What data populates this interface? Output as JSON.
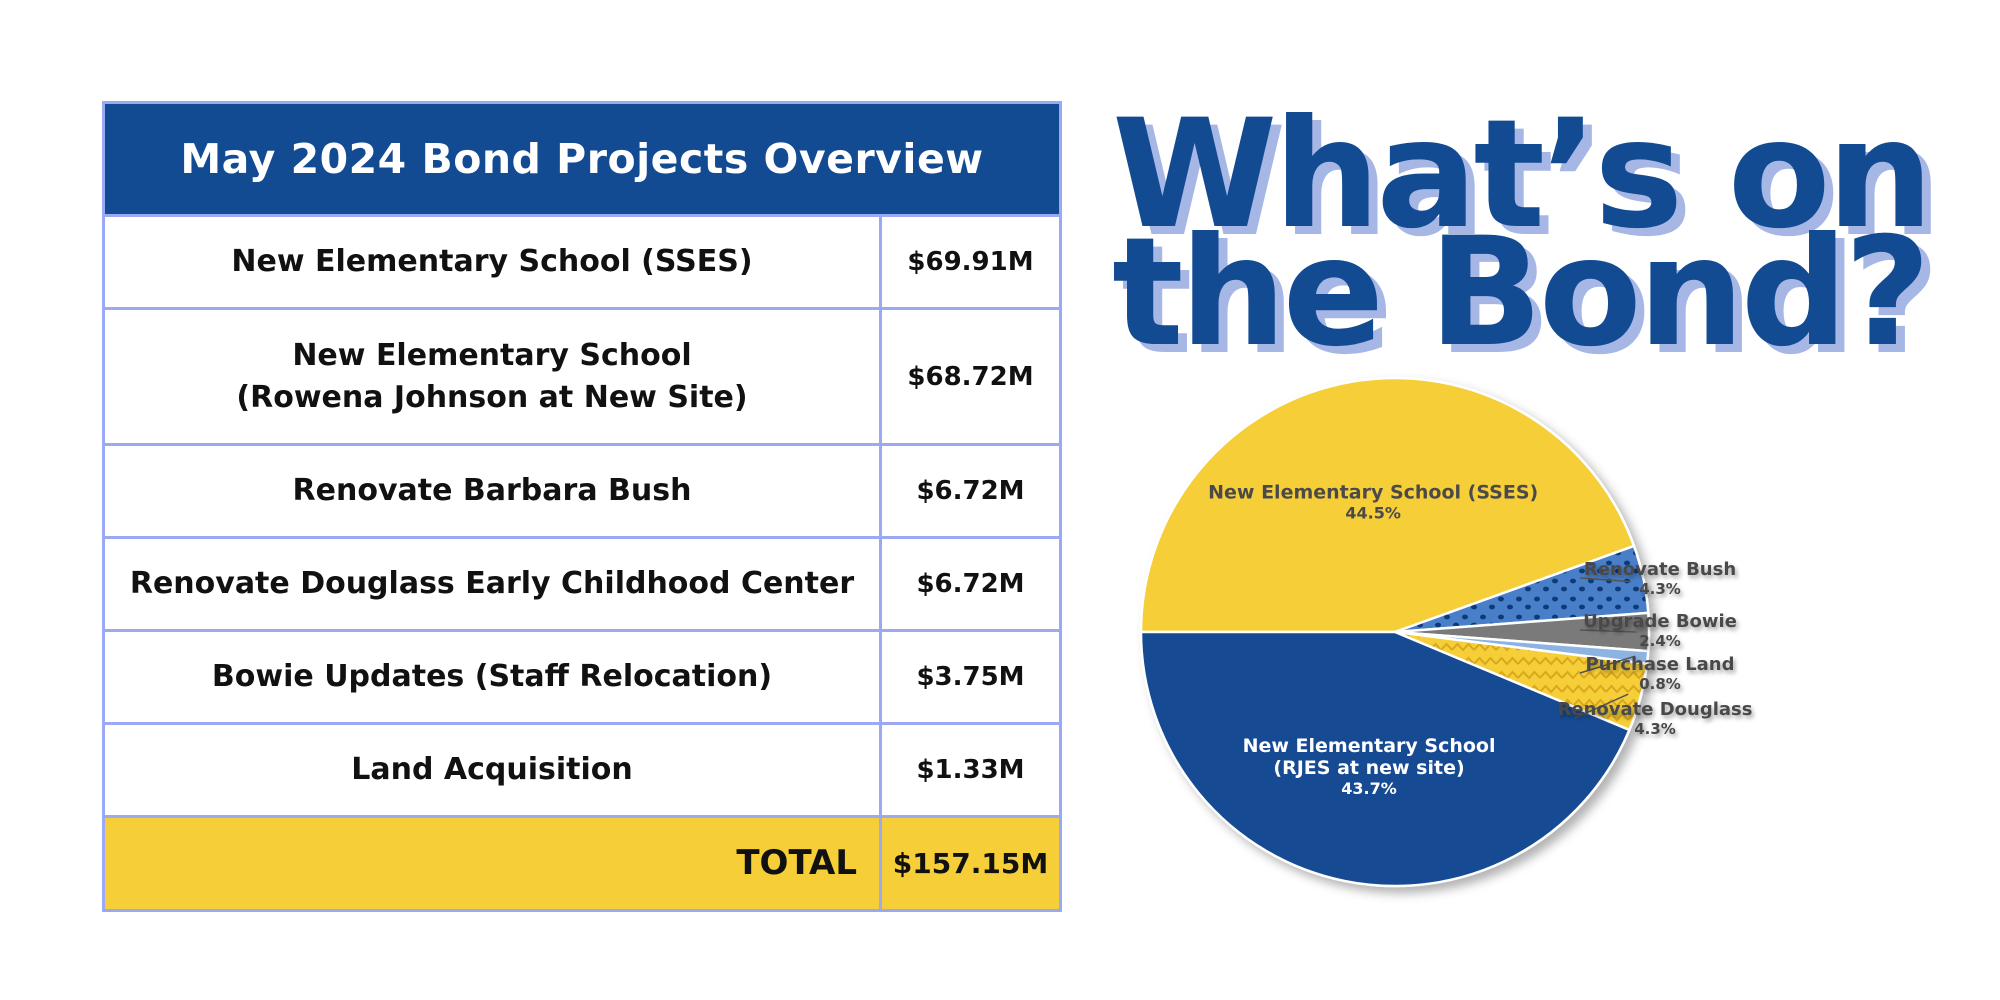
{
  "table": {
    "title": "May 2024 Bond Projects Overview",
    "rows": [
      {
        "name": "New Elementary School (SSES)",
        "amount": "$69.91M"
      },
      {
        "name": "New Elementary School\n(Rowena Johnson at New Site)",
        "amount": "$68.72M"
      },
      {
        "name": "Renovate Barbara Bush",
        "amount": "$6.72M"
      },
      {
        "name": "Renovate Douglass Early Childhood Center",
        "amount": "$6.72M"
      },
      {
        "name": "Bowie Updates (Staff Relocation)",
        "amount": "$3.75M"
      },
      {
        "name": "Land Acquisition",
        "amount": "$1.33M"
      }
    ],
    "total_label": "TOTAL",
    "total_amount": "$157.15M"
  },
  "headline": {
    "line1": "What’s on",
    "line2": "the Bond?"
  },
  "chart_data": {
    "type": "pie",
    "slices": [
      {
        "label": "New Elementary School (SSES)",
        "value": 44.5,
        "pct": "44.5%",
        "color": "#f6ce37"
      },
      {
        "label": "Renovate Bush",
        "value": 4.3,
        "pct": "4.3%",
        "color": "#4a7fc9",
        "pattern": "dots"
      },
      {
        "label": "Upgrade Bowie",
        "value": 2.4,
        "pct": "2.4%",
        "color": "#7a7a7a"
      },
      {
        "label": "Purchase Land",
        "value": 0.8,
        "pct": "0.8%",
        "color": "#8db3e2"
      },
      {
        "label": "Renovate Douglass",
        "value": 4.3,
        "pct": "4.3%",
        "color": "#f6ce37",
        "pattern": "zigzag"
      },
      {
        "label": "New Elementary School\n(RJES at new site)",
        "value": 43.7,
        "pct": "43.7%",
        "color": "#134b93"
      }
    ]
  }
}
